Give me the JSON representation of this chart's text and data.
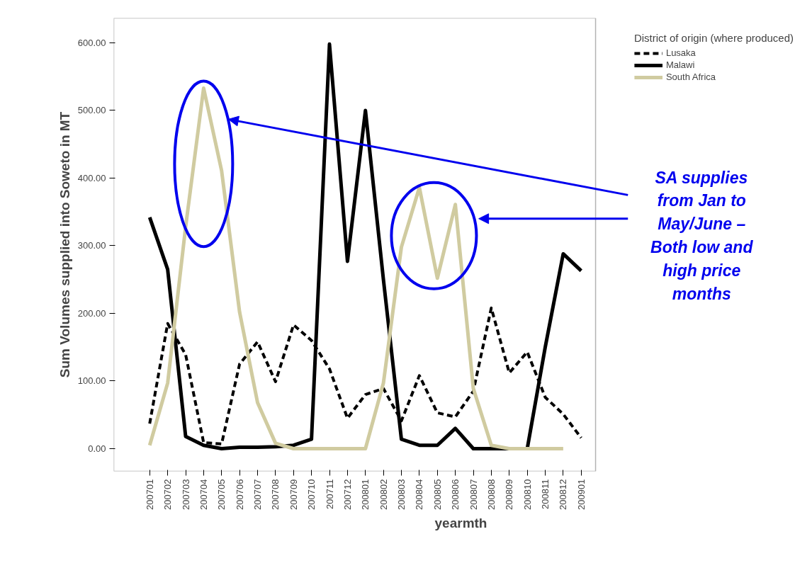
{
  "chart_data": {
    "type": "line",
    "xlabel": "yearmth",
    "ylabel": "Sum Volumes supplied into Soweto in MT",
    "legend_title": "District of origin (where produced)",
    "categories": [
      "200701",
      "200702",
      "200703",
      "200704",
      "200705",
      "200706",
      "200707",
      "200708",
      "200709",
      "200710",
      "200711",
      "200712",
      "200801",
      "200802",
      "200803",
      "200804",
      "200805",
      "200806",
      "200807",
      "200808",
      "200809",
      "200810",
      "200811",
      "200812",
      "200901"
    ],
    "series": [
      {
        "name": "Lusaka",
        "color": "#000000",
        "line_style": "dashed",
        "values": [
          37,
          185,
          139,
          9,
          7,
          125,
          158,
          99,
          183,
          160,
          118,
          45,
          80,
          89,
          41,
          108,
          53,
          47,
          85,
          208,
          112,
          143,
          76,
          51,
          16
        ]
      },
      {
        "name": "Malawi",
        "color": "#000000",
        "line_style": "solid",
        "values": [
          342,
          265,
          18,
          5,
          0,
          2,
          2,
          3,
          5,
          14,
          598,
          277,
          500,
          250,
          14,
          5,
          5,
          30,
          0,
          0,
          0,
          0,
          150,
          288,
          263
        ]
      },
      {
        "name": "South Africa",
        "color": "#d0cba0",
        "line_style": "solid",
        "values": [
          5,
          97,
          328,
          533,
          411,
          202,
          68,
          8,
          0,
          0,
          0,
          0,
          0,
          97,
          298,
          386,
          252,
          361,
          89,
          5,
          0,
          0,
          0,
          0,
          null
        ]
      }
    ],
    "ylim": [
      -33.5,
      636.6
    ],
    "yticks": [
      {
        "value": 0,
        "label": "0.00"
      },
      {
        "value": 100,
        "label": "100.00"
      },
      {
        "value": 200,
        "label": "200.00"
      },
      {
        "value": 300,
        "label": "300.00"
      },
      {
        "value": 400,
        "label": "400.00"
      },
      {
        "value": 500,
        "label": "500.00"
      },
      {
        "value": 600,
        "label": "600.00"
      }
    ],
    "grid": false,
    "legend": "top right",
    "marker": "none",
    "annotations": [
      "SA supplies\nfrom Jan to\nMay/June –\nBoth low and\nhigh price\nmonths"
    ]
  }
}
